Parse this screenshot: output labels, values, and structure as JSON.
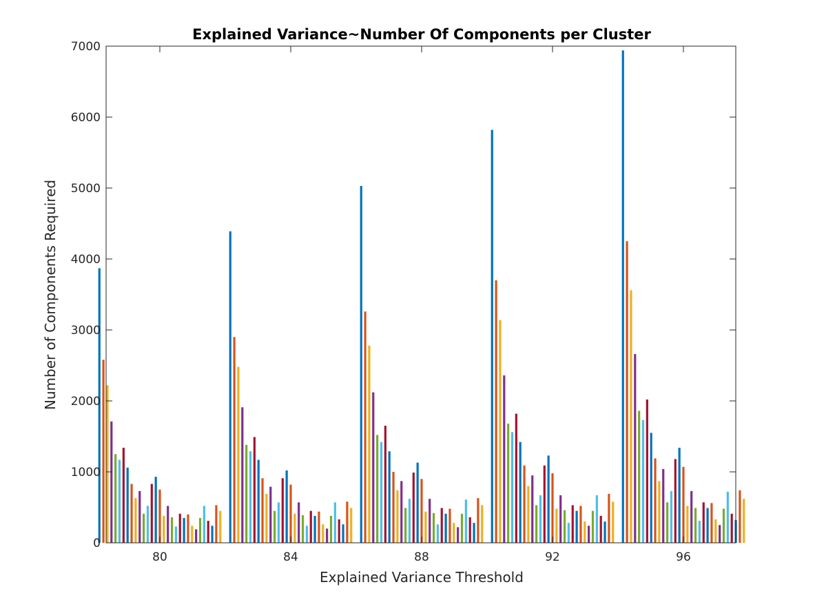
{
  "chart_data": {
    "type": "bar",
    "title": "Explained Variance~Number Of Components per Cluster",
    "xlabel": "Explained Variance Threshold",
    "ylabel": "Number of Components Required",
    "categories": [
      "80",
      "84",
      "88",
      "92",
      "96"
    ],
    "ylim": [
      0,
      7000
    ],
    "yticks": [
      "0",
      "1000",
      "2000",
      "3000",
      "4000",
      "5000",
      "6000",
      "7000"
    ],
    "grid": false,
    "legend": "none",
    "colors": [
      "#0072BD",
      "#D95319",
      "#EDB120",
      "#7E2F8E",
      "#77AC30",
      "#4DBEEE",
      "#A2142F"
    ],
    "series": [
      {
        "values": [
          3870,
          4390,
          5030,
          5820,
          6940
        ]
      },
      {
        "values": [
          2580,
          2900,
          3260,
          3700,
          4250
        ]
      },
      {
        "values": [
          2220,
          2480,
          2780,
          3140,
          3560
        ]
      },
      {
        "values": [
          1710,
          1910,
          2120,
          2360,
          2660
        ]
      },
      {
        "values": [
          1250,
          1380,
          1520,
          1680,
          1860
        ]
      },
      {
        "values": [
          1170,
          1290,
          1420,
          1560,
          1730
        ]
      },
      {
        "values": [
          1340,
          1490,
          1650,
          1820,
          2020
        ]
      },
      {
        "values": [
          1060,
          1170,
          1290,
          1420,
          1550
        ]
      },
      {
        "values": [
          830,
          910,
          1000,
          1090,
          1190
        ]
      },
      {
        "values": [
          630,
          690,
          740,
          800,
          870
        ]
      },
      {
        "values": [
          730,
          790,
          870,
          950,
          1040
        ]
      },
      {
        "values": [
          410,
          450,
          490,
          530,
          570
        ]
      },
      {
        "values": [
          520,
          570,
          620,
          670,
          730
        ]
      },
      {
        "values": [
          830,
          910,
          990,
          1090,
          1180
        ]
      },
      {
        "values": [
          930,
          1020,
          1130,
          1230,
          1340
        ]
      },
      {
        "values": [
          750,
          820,
          900,
          980,
          1070
        ]
      },
      {
        "values": [
          380,
          410,
          440,
          480,
          520
        ]
      },
      {
        "values": [
          520,
          570,
          620,
          670,
          730
        ]
      },
      {
        "values": [
          360,
          390,
          420,
          460,
          490
        ]
      },
      {
        "values": [
          230,
          240,
          260,
          280,
          310
        ]
      },
      {
        "values": [
          410,
          450,
          490,
          530,
          570
        ]
      },
      {
        "values": [
          350,
          380,
          410,
          450,
          490
        ]
      },
      {
        "values": [
          400,
          440,
          480,
          520,
          560
        ]
      },
      {
        "values": [
          240,
          260,
          280,
          300,
          330
        ]
      },
      {
        "values": [
          190,
          200,
          220,
          240,
          250
        ]
      },
      {
        "values": [
          350,
          380,
          410,
          450,
          480
        ]
      },
      {
        "values": [
          520,
          570,
          610,
          670,
          720
        ]
      },
      {
        "values": [
          310,
          330,
          360,
          380,
          410
        ]
      },
      {
        "values": [
          240,
          260,
          280,
          300,
          320
        ]
      },
      {
        "values": [
          530,
          580,
          630,
          690,
          740
        ]
      },
      {
        "values": [
          450,
          490,
          530,
          580,
          620
        ]
      }
    ]
  }
}
